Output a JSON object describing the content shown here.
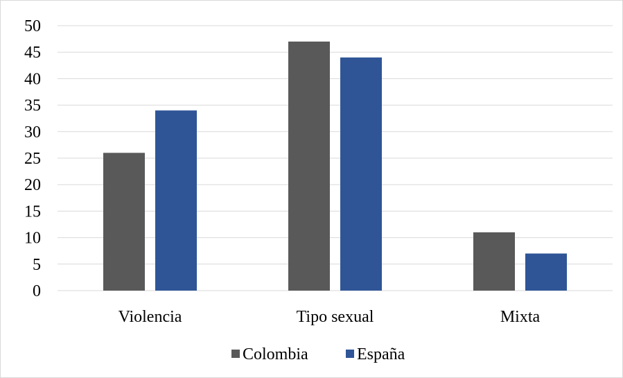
{
  "chart_data": {
    "type": "bar",
    "categories": [
      "Violencia",
      "Tipo sexual",
      "Mixta"
    ],
    "series": [
      {
        "name": "Colombia",
        "values": [
          26,
          47,
          11
        ],
        "color": "#595959"
      },
      {
        "name": "España",
        "values": [
          34,
          44,
          7
        ],
        "color": "#2f5597"
      }
    ],
    "ylim": [
      0,
      50
    ],
    "yticks": [
      "0",
      "5",
      "10",
      "15",
      "20",
      "25",
      "30",
      "35",
      "40",
      "45",
      "50"
    ],
    "grid": true,
    "legend_position": "bottom"
  }
}
